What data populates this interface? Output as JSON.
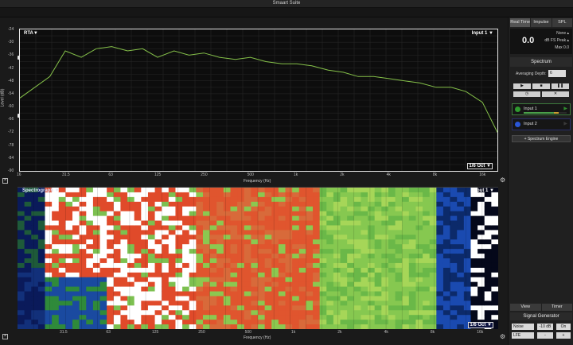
{
  "window": {
    "title": "Smaart Suite"
  },
  "rta": {
    "tag": "RTA▼",
    "input": "Input 1 ▼",
    "resolution": "1/6 Oct ▼",
    "y_axis_label": "Level (dB)",
    "x_axis_label": "Frequency (Hz)",
    "y_ticks": [
      "-24",
      "-30",
      "-36",
      "-42",
      "-48",
      "-54",
      "-60",
      "-66",
      "-72",
      "-78",
      "-84",
      "-90"
    ],
    "x_ticks": [
      "16",
      "31.5",
      "63",
      "125",
      "250",
      "500",
      "1k",
      "2k",
      "4k",
      "8k",
      "16k"
    ],
    "trace_color": "#86c24a"
  },
  "spectrograph": {
    "tag": "Spectrograph ▼",
    "input": "Input 1 ▼",
    "resolution": "1/6 Oct ▼",
    "x_axis_label": "Frequency (Hz)",
    "x_ticks": [
      "31.5",
      "63",
      "125",
      "250",
      "500",
      "1k",
      "2k",
      "4k",
      "8k",
      "16k"
    ]
  },
  "sidebar": {
    "tabs": [
      "Real Time",
      "Impulse",
      "SPL"
    ],
    "meter": {
      "value": "0.0",
      "option_none": "None ▴",
      "option_units": "dB FS Peak ▴",
      "option_max": "Max 0.0"
    },
    "spectrum_header": "Spectrum",
    "averaging_label": "Averaging Depth:",
    "averaging_value": "6",
    "inputs": [
      {
        "name": "Input 1",
        "color": "#2f9a2f"
      },
      {
        "name": "Input 2",
        "color": "#2a56d8"
      }
    ],
    "engine_button": "+ Spectrum Engine",
    "bottom_tabs": [
      "View",
      "Timer"
    ],
    "signal_generator": {
      "header": "Signal Generator",
      "type": "Noise",
      "level": "-10 dB",
      "state": "On",
      "mode": "LFE",
      "minus": "-",
      "plus": "+"
    }
  },
  "chart_data": {
    "type": "line",
    "title": "",
    "xlabel": "Frequency (Hz)",
    "ylabel": "Level (dB)",
    "x_scale": "log",
    "xlim": [
      16,
      20000
    ],
    "ylim": [
      -90,
      -24
    ],
    "grid": true,
    "series": [
      {
        "x": [
          16,
          20,
          25,
          31.5,
          40,
          50,
          63,
          80,
          100,
          125,
          160,
          200,
          250,
          315,
          400,
          500,
          630,
          800,
          1000,
          1250,
          1600,
          2000,
          2500,
          3150,
          4000,
          5000,
          6300,
          8000,
          10000,
          12500,
          16000,
          20000
        ],
        "values": [
          -56,
          -51,
          -46,
          -34,
          -37,
          -33,
          -32,
          -34,
          -33,
          -37,
          -34,
          -36,
          -35,
          -37,
          -38,
          -37,
          -39,
          -40,
          -40,
          -41,
          -43,
          -44,
          -46,
          -46,
          -47,
          -48,
          -49,
          -51,
          -51,
          -53,
          -58,
          -72
        ]
      }
    ]
  }
}
